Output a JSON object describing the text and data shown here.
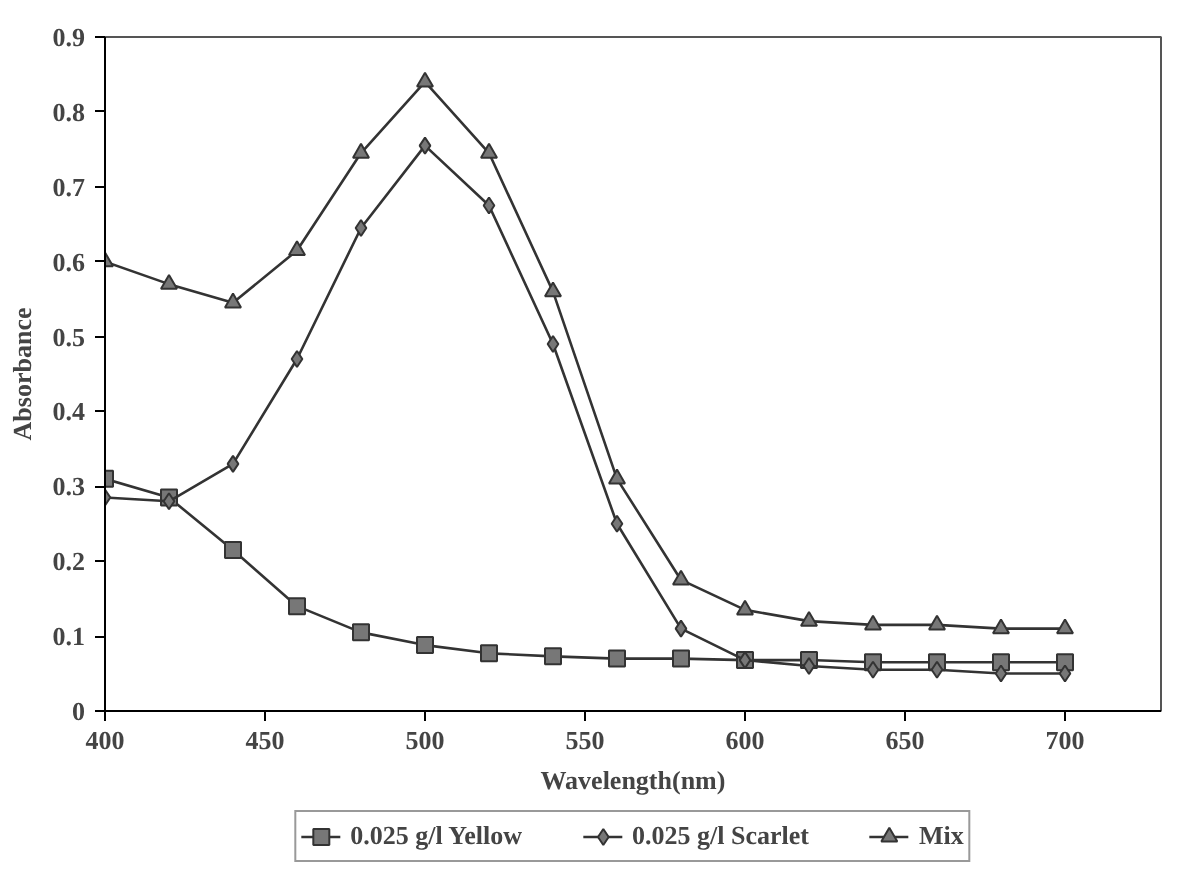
{
  "chart_data": {
    "type": "line",
    "xlabel": "Wavelength(nm)",
    "ylabel": "Absorbance",
    "x": [
      400,
      420,
      440,
      460,
      480,
      500,
      520,
      540,
      560,
      580,
      600,
      620,
      640,
      660,
      680,
      700
    ],
    "series": [
      {
        "name": "0.025 g/l Yellow",
        "color": "#333333",
        "marker": "square",
        "values": [
          0.31,
          0.285,
          0.215,
          0.14,
          0.105,
          0.088,
          0.077,
          0.073,
          0.07,
          0.07,
          0.068,
          0.068,
          0.065,
          0.065,
          0.065,
          0.065
        ]
      },
      {
        "name": "0.025 g/l Scarlet",
        "color": "#333333",
        "marker": "diamond",
        "values": [
          0.285,
          0.28,
          0.33,
          0.47,
          0.645,
          0.755,
          0.675,
          0.49,
          0.25,
          0.11,
          0.068,
          0.06,
          0.055,
          0.055,
          0.05,
          0.05
        ]
      },
      {
        "name": "Mix",
        "color": "#333333",
        "marker": "triangle",
        "values": [
          0.6,
          0.57,
          0.545,
          0.615,
          0.745,
          0.84,
          0.745,
          0.56,
          0.31,
          0.175,
          0.135,
          0.12,
          0.115,
          0.115,
          0.11,
          0.11
        ]
      }
    ],
    "xlim": [
      400,
      730
    ],
    "xticks": [
      400,
      450,
      500,
      550,
      600,
      650,
      700
    ],
    "ylim": [
      0,
      0.9
    ],
    "yticks": [
      0,
      0.1,
      0.2,
      0.3,
      0.4,
      0.5,
      0.6,
      0.7,
      0.8,
      0.9
    ],
    "grid": false,
    "legend": "bottom",
    "line_style": "solid"
  }
}
